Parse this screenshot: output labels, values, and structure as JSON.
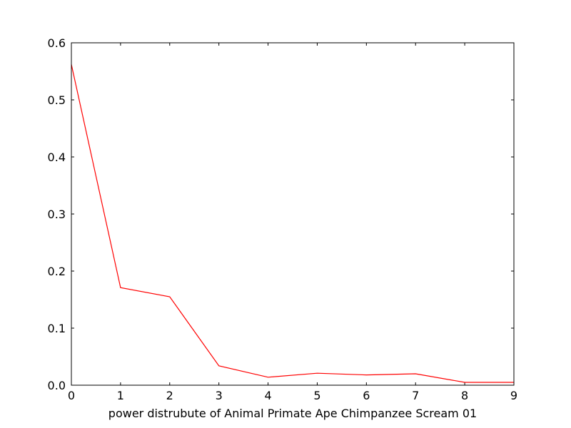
{
  "chart_data": {
    "type": "line",
    "title": "",
    "xlabel": "power distrubute of Animal Primate Ape Chimpanzee Scream 01",
    "ylabel": "",
    "xlim": [
      0,
      9
    ],
    "ylim": [
      0.0,
      0.6
    ],
    "x_ticks": [
      0,
      1,
      2,
      3,
      4,
      5,
      6,
      7,
      8,
      9
    ],
    "x_tick_labels": [
      "0",
      "1",
      "2",
      "3",
      "4",
      "5",
      "6",
      "7",
      "8",
      "9"
    ],
    "y_ticks": [
      0.0,
      0.1,
      0.2,
      0.3,
      0.4,
      0.5,
      0.6
    ],
    "y_tick_labels": [
      "0.0",
      "0.1",
      "0.2",
      "0.3",
      "0.4",
      "0.5",
      "0.6"
    ],
    "grid": false,
    "series": [
      {
        "color": "#ff0000",
        "x": [
          0,
          1,
          2,
          3,
          4,
          5,
          6,
          7,
          8,
          9
        ],
        "y": [
          0.562,
          0.171,
          0.155,
          0.034,
          0.014,
          0.021,
          0.018,
          0.02,
          0.005,
          0.005
        ]
      }
    ]
  }
}
